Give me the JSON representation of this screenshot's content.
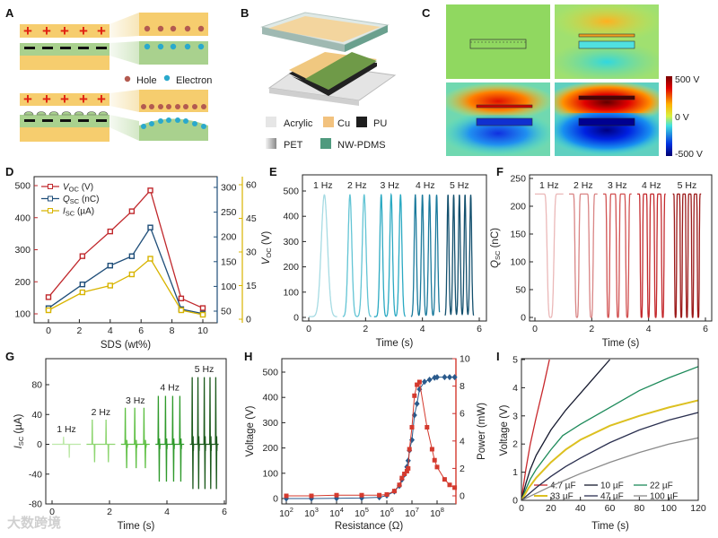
{
  "panel_labels": {
    "a": "A",
    "b": "B",
    "c": "C",
    "d": "D",
    "e": "E",
    "f": "F",
    "g": "G",
    "h": "H",
    "i": "I"
  },
  "panel_a": {
    "plus": "+",
    "legend_hole": "Hole",
    "legend_electron": "Electron",
    "colors": {
      "electrode": "#f6cd6e",
      "film": "#a9d18e",
      "hole": "#b35a50",
      "electron": "#2aa9cc",
      "plus": "#e02010"
    }
  },
  "panel_b": {
    "legend": [
      {
        "label": "Acrylic",
        "color": "#e6e6e6"
      },
      {
        "label": "Cu",
        "color": "#f2c27e"
      },
      {
        "label": "PU",
        "color": "#1e1e1e"
      },
      {
        "label": "PET",
        "color": "#bbbbbb"
      },
      {
        "label": "NW-PDMS",
        "color": "#4f9a7e"
      }
    ]
  },
  "panel_c": {
    "colorbar": {
      "max_label": "500 V",
      "mid_label": "0 V",
      "min_label": "-500 V"
    }
  },
  "watermark": "大数跨境",
  "chart_data": [
    {
      "panel": "D",
      "type": "line",
      "xlabel": "SDS (wt%)",
      "x": [
        0,
        2.2,
        4,
        5.4,
        6.6,
        8.6,
        10
      ],
      "x_ticks": [
        0,
        2,
        4,
        6,
        8,
        10
      ],
      "left_axis": {
        "range": [
          100,
          500
        ],
        "ticks": [
          100,
          200,
          300,
          400,
          500
        ],
        "color": "#c0282c"
      },
      "right_axis": {
        "range": [
          50,
          300
        ],
        "ticks": [
          50,
          100,
          150,
          200,
          250,
          300
        ],
        "color": "#1f4e79"
      },
      "right_axis2": {
        "range": [
          0,
          60
        ],
        "ticks": [
          0,
          15,
          30,
          45,
          60
        ],
        "color": "#d8b400"
      },
      "series": [
        {
          "symbol": "V",
          "sub": "OC",
          "unit": " (V)",
          "axis": "left",
          "color": "#c0282c",
          "values": [
            152,
            280,
            357,
            420,
            485,
            148,
            118
          ]
        },
        {
          "symbol": "Q",
          "sub": "SC",
          "unit": " (nC)",
          "axis": "right",
          "color": "#1f4e79",
          "values": [
            56,
            104,
            142,
            161,
            219,
            54,
            45
          ]
        },
        {
          "symbol": "I",
          "sub": "SC",
          "unit": " (µA)",
          "axis": "right2",
          "color": "#d8b400",
          "values": [
            4,
            12,
            15,
            20,
            27,
            4,
            2
          ]
        }
      ]
    },
    {
      "panel": "E",
      "type": "line",
      "xlabel": "Time (s)",
      "ylabel": {
        "symbol": "V",
        "sub": "OC",
        "unit": " (V)"
      },
      "xlim": [
        0,
        6
      ],
      "ylim": [
        0,
        500
      ],
      "x_ticks": [
        0,
        2,
        4,
        6
      ],
      "y_ticks": [
        0,
        100,
        200,
        300,
        400,
        500
      ],
      "peak_value": 485,
      "baseline": 3,
      "segments": [
        {
          "label": "1 Hz",
          "freq": 1,
          "range": [
            0,
            1
          ],
          "peaks": [
            0.55
          ],
          "color": "#a6dbe3"
        },
        {
          "label": "2 Hz",
          "freq": 2,
          "range": [
            1.2,
            2.2
          ],
          "peaks": [
            1.45,
            1.95
          ],
          "color": "#62c4d4"
        },
        {
          "label": "3 Hz",
          "freq": 3,
          "range": [
            2.3,
            3.4
          ],
          "peaks": [
            2.55,
            2.9,
            3.23
          ],
          "color": "#2aa9c2"
        },
        {
          "label": "4 Hz",
          "freq": 4,
          "range": [
            3.6,
            4.6
          ],
          "peaks": [
            3.75,
            4.0,
            4.25,
            4.5
          ],
          "color": "#1b7a9c"
        },
        {
          "label": "5 Hz",
          "freq": 5,
          "range": [
            4.8,
            5.8
          ],
          "peaks": [
            4.9,
            5.1,
            5.3,
            5.5,
            5.7
          ],
          "color": "#13506e"
        }
      ]
    },
    {
      "panel": "F",
      "type": "line",
      "xlabel": "Time (s)",
      "ylabel": {
        "symbol": "Q",
        "sub": "SC",
        "unit": " (nC)"
      },
      "xlim": [
        0,
        6
      ],
      "ylim": [
        0,
        250
      ],
      "x_ticks": [
        0,
        2,
        4,
        6
      ],
      "y_ticks": [
        0,
        50,
        100,
        150,
        200,
        250
      ],
      "baseline": 222,
      "dip_value": 0,
      "segments": [
        {
          "label": "1 Hz",
          "freq": 1,
          "range": [
            0,
            1
          ],
          "peaks": [
            0.55
          ],
          "color": "#ebb8b8"
        },
        {
          "label": "2 Hz",
          "freq": 2,
          "range": [
            1.2,
            2.2
          ],
          "peaks": [
            1.48,
            1.98
          ],
          "color": "#d98585"
        },
        {
          "label": "3 Hz",
          "freq": 3,
          "range": [
            2.4,
            3.4
          ],
          "peaks": [
            2.58,
            2.92,
            3.25
          ],
          "color": "#d25252"
        },
        {
          "label": "4 Hz",
          "freq": 4,
          "range": [
            3.6,
            4.6
          ],
          "peaks": [
            3.75,
            4.0,
            4.25,
            4.5
          ],
          "color": "#c42a2e"
        },
        {
          "label": "5 Hz",
          "freq": 5,
          "range": [
            4.85,
            5.85
          ],
          "peaks": [
            4.95,
            5.15,
            5.35,
            5.55,
            5.75
          ],
          "color": "#9c1a1a"
        }
      ]
    },
    {
      "panel": "G",
      "type": "line",
      "xlabel": "Time (s)",
      "ylabel": {
        "symbol": "I",
        "sub": "SC",
        "unit": " (µA)"
      },
      "xlim": [
        0,
        6
      ],
      "ylim": [
        -80,
        80
      ],
      "x_ticks": [
        0,
        2,
        4,
        6
      ],
      "y_ticks": [
        -80,
        -40,
        0,
        40,
        80
      ],
      "segments": [
        {
          "label": "1 Hz",
          "freq": 1,
          "range": [
            0,
            1
          ],
          "peaks": [
            0.4
          ],
          "pos": 10,
          "neg": -18,
          "color": "#bde8a8"
        },
        {
          "label": "2 Hz",
          "freq": 2,
          "range": [
            1.2,
            2.2
          ],
          "peaks": [
            1.4,
            1.88
          ],
          "pos": 33,
          "neg": -24,
          "color": "#8fd672"
        },
        {
          "label": "3 Hz",
          "freq": 3,
          "range": [
            2.4,
            3.4
          ],
          "peaks": [
            2.55,
            2.88,
            3.2
          ],
          "pos": 49,
          "neg": -32,
          "color": "#5dbf42"
        },
        {
          "label": "4 Hz",
          "freq": 4,
          "range": [
            3.6,
            4.6
          ],
          "peaks": [
            3.7,
            3.95,
            4.2,
            4.45
          ],
          "pos": 65,
          "neg": -50,
          "color": "#2f9a2b"
        },
        {
          "label": "5 Hz",
          "freq": 5,
          "range": [
            4.8,
            5.8
          ],
          "peaks": [
            4.88,
            5.08,
            5.3,
            5.5,
            5.7
          ],
          "pos": 90,
          "neg": -60,
          "color": "#1c5a1c"
        }
      ]
    },
    {
      "panel": "H",
      "type": "line",
      "xlabel": "Resistance (Ω)",
      "ylabel_left": "Voltage (V)",
      "ylabel_right": "Power (mW)",
      "x_scale": "log",
      "x_tick_base": "10",
      "x_tick_exponents": [
        2,
        3,
        4,
        5,
        6,
        7,
        8
      ],
      "ylim_left": [
        0,
        500
      ],
      "y_ticks_left": [
        0,
        100,
        200,
        300,
        400,
        500
      ],
      "ylim_right": [
        0,
        10
      ],
      "y_ticks_right": [
        0,
        2,
        4,
        6,
        8,
        10
      ],
      "series": [
        {
          "name": "Voltage",
          "axis": "left",
          "color": "#2a5a8c",
          "marker": "diamond",
          "log10_x": [
            2,
            3,
            4,
            5,
            5.7,
            6,
            6.3,
            6.5,
            6.6,
            6.7,
            6.8,
            6.85,
            6.9,
            7,
            7.1,
            7.2,
            7.3,
            7.5,
            7.7,
            7.9,
            8,
            8.3,
            8.5,
            8.7
          ],
          "values": [
            0,
            0,
            1,
            2,
            5,
            12,
            28,
            50,
            75,
            95,
            125,
            150,
            190,
            232,
            330,
            375,
            432,
            462,
            470,
            478,
            480,
            480,
            480,
            480
          ]
        },
        {
          "name": "Power",
          "axis": "right",
          "color": "#d43a2e",
          "marker": "square",
          "log10_x": [
            2,
            3,
            4,
            5,
            5.7,
            6,
            6.3,
            6.5,
            6.6,
            6.7,
            6.8,
            6.85,
            6.9,
            7,
            7.1,
            7.2,
            7.3,
            7.6,
            7.8,
            7.9,
            8,
            8.3,
            8.5,
            8.7
          ],
          "values": [
            0,
            0,
            0.05,
            0.05,
            0.05,
            0.1,
            0.35,
            0.8,
            1.3,
            1.6,
            1.8,
            2,
            3.4,
            5,
            7.3,
            8.1,
            8.3,
            5,
            3.4,
            2.6,
            2.1,
            1.2,
            0.8,
            0.6
          ]
        }
      ]
    },
    {
      "panel": "I",
      "type": "line",
      "xlabel": "Time (s)",
      "ylabel": "Voltage (V)",
      "xlim": [
        0,
        120
      ],
      "ylim": [
        0,
        5
      ],
      "x_ticks": [
        0,
        20,
        40,
        60,
        80,
        100,
        120
      ],
      "y_ticks": [
        0,
        1,
        2,
        3,
        4,
        5
      ],
      "series": [
        {
          "name": "4.7 µF",
          "color": "#c8282c",
          "points": [
            [
              0,
              0
            ],
            [
              1,
              0.4
            ],
            [
              3,
              1.1
            ],
            [
              6,
              2.0
            ],
            [
              10,
              2.95
            ],
            [
              15,
              4.05
            ],
            [
              19,
              5
            ]
          ]
        },
        {
          "name": "10 µF",
          "color": "#15192e",
          "points": [
            [
              0,
              0
            ],
            [
              3,
              0.6
            ],
            [
              6,
              1.1
            ],
            [
              10,
              1.6
            ],
            [
              20,
              2.5
            ],
            [
              30,
              3.2
            ],
            [
              40,
              3.8
            ],
            [
              50,
              4.4
            ],
            [
              60,
              5
            ]
          ]
        },
        {
          "name": "22 µF",
          "color": "#1d8a5a",
          "points": [
            [
              0,
              0
            ],
            [
              3,
              0.4
            ],
            [
              6,
              0.75
            ],
            [
              10,
              1.1
            ],
            [
              20,
              1.8
            ],
            [
              28,
              2.3
            ],
            [
              40,
              2.7
            ],
            [
              60,
              3.3
            ],
            [
              80,
              3.9
            ],
            [
              100,
              4.35
            ],
            [
              120,
              4.75
            ]
          ]
        },
        {
          "name": "33 µF",
          "color": "#dcc020",
          "points": [
            [
              0,
              0
            ],
            [
              5,
              0.45
            ],
            [
              10,
              0.8
            ],
            [
              20,
              1.35
            ],
            [
              30,
              1.8
            ],
            [
              40,
              2.15
            ],
            [
              60,
              2.65
            ],
            [
              80,
              3.0
            ],
            [
              100,
              3.3
            ],
            [
              120,
              3.55
            ]
          ]
        },
        {
          "name": "47 µF",
          "color": "#2b3050",
          "points": [
            [
              0,
              0
            ],
            [
              10,
              0.45
            ],
            [
              20,
              0.85
            ],
            [
              30,
              1.2
            ],
            [
              40,
              1.5
            ],
            [
              60,
              2.05
            ],
            [
              80,
              2.5
            ],
            [
              100,
              2.85
            ],
            [
              120,
              3.12
            ]
          ]
        },
        {
          "name": "100 µF",
          "color": "#8a8a8a",
          "points": [
            [
              0,
              0
            ],
            [
              10,
              0.25
            ],
            [
              20,
              0.5
            ],
            [
              40,
              0.95
            ],
            [
              60,
              1.35
            ],
            [
              80,
              1.7
            ],
            [
              100,
              2.0
            ],
            [
              120,
              2.22
            ]
          ]
        }
      ]
    }
  ]
}
